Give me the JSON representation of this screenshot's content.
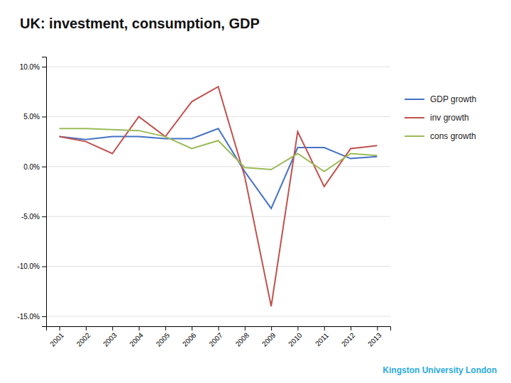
{
  "chart_data": {
    "type": "line",
    "title": "UK: investment, consumption, GDP",
    "categories": [
      "2001",
      "2002",
      "2003",
      "2004",
      "2005",
      "2006",
      "2007",
      "2008",
      "2009",
      "2010",
      "2011",
      "2012",
      "2013"
    ],
    "series": [
      {
        "name": "GDP growth",
        "color": "#4472C4",
        "values": [
          0.03,
          0.027,
          0.03,
          0.03,
          0.028,
          0.028,
          0.038,
          -0.005,
          -0.042,
          0.019,
          0.019,
          0.008,
          0.01
        ]
      },
      {
        "name": "inv growth",
        "color": "#C0504D",
        "values": [
          0.03,
          0.025,
          0.013,
          0.05,
          0.03,
          0.065,
          0.08,
          -0.01,
          -0.14,
          0.035,
          -0.02,
          0.018,
          0.021
        ]
      },
      {
        "name": "cons growth",
        "color": "#9BBB59",
        "values": [
          0.038,
          0.038,
          0.037,
          0.036,
          0.03,
          0.018,
          0.026,
          -0.001,
          -0.003,
          0.013,
          -0.005,
          0.013,
          0.011
        ]
      }
    ],
    "ylim": [
      -0.16,
      0.11
    ],
    "yticks": [
      {
        "value": -0.15,
        "label": "-15.0%"
      },
      {
        "value": -0.1,
        "label": "-10.0%"
      },
      {
        "value": -0.05,
        "label": "-5.0%"
      },
      {
        "value": 0.0,
        "label": "0.0%"
      },
      {
        "value": 0.05,
        "label": "5.0%"
      },
      {
        "value": 0.1,
        "label": "10.0%"
      }
    ],
    "grid": true,
    "legend": "right",
    "annotations": [
      "Kingston University London"
    ]
  }
}
